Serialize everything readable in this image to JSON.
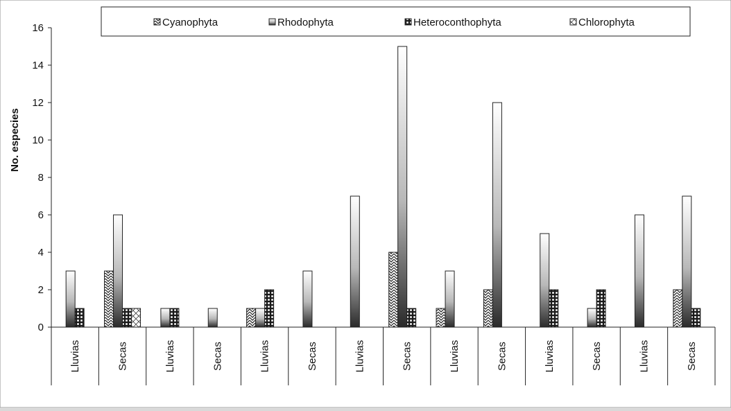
{
  "chart_data": {
    "type": "bar",
    "title": "",
    "xlabel": "",
    "ylabel": "No. especies",
    "ylim": [
      0,
      16
    ],
    "yticks": [
      0,
      2,
      4,
      6,
      8,
      10,
      12,
      14,
      16
    ],
    "grid": false,
    "legend_position": "top",
    "categories": [
      "Lluvias",
      "Secas",
      "Lluvias",
      "Secas",
      "Lluvias",
      "Secas",
      "Lluvias",
      "Secas",
      "Lluvias",
      "Secas",
      "Lluvias",
      "Secas",
      "Lluvias",
      "Secas"
    ],
    "series": [
      {
        "name": "Cyanophyta",
        "values": [
          0,
          3,
          0,
          0,
          1,
          0,
          0,
          4,
          1,
          2,
          0,
          0,
          0,
          2
        ]
      },
      {
        "name": "Rhodophyta",
        "values": [
          3,
          6,
          1,
          1,
          1,
          3,
          7,
          15,
          3,
          12,
          5,
          1,
          6,
          7
        ]
      },
      {
        "name": "Heteroconthophyta",
        "values": [
          1,
          1,
          1,
          0,
          2,
          0,
          0,
          1,
          0,
          0,
          2,
          2,
          0,
          1
        ]
      },
      {
        "name": "Chlorophyta",
        "values": [
          0,
          1,
          0,
          0,
          0,
          0,
          0,
          0,
          0,
          0,
          0,
          0,
          0,
          0
        ]
      }
    ]
  }
}
